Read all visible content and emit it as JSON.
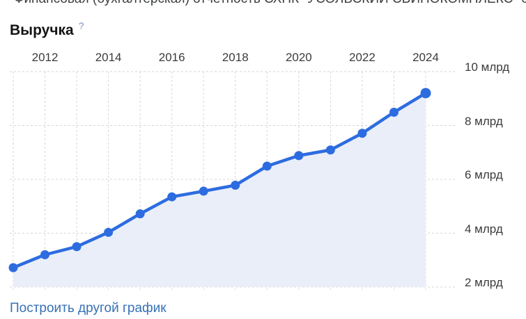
{
  "header": {
    "title": "Финансовая (бухгалтерская) отчетность СХПК \"УСОЛЬСКИЙ СВИНОКОМПЛЕКС\" со"
  },
  "section": {
    "title": "Выручка",
    "help": "?"
  },
  "chart_data": {
    "type": "area",
    "title": "Выручка",
    "unit": "млрд руб.",
    "x": [
      2011,
      2012,
      2013,
      2014,
      2015,
      2016,
      2017,
      2018,
      2019,
      2020,
      2021,
      2022,
      2023,
      2024
    ],
    "values": [
      2.72,
      3.2,
      3.5,
      4.03,
      4.72,
      5.35,
      5.56,
      5.78,
      6.49,
      6.88,
      7.09,
      7.71,
      8.49,
      9.2
    ],
    "x_ticks": [
      2012,
      2014,
      2016,
      2018,
      2020,
      2022,
      2024
    ],
    "y_ticks": [
      10,
      8,
      6,
      4,
      2
    ],
    "y_tick_labels": [
      "10 млрд",
      "8 млрд",
      "6 млрд",
      "4 млрд",
      "2 млрд"
    ],
    "xlim": [
      2011,
      2024
    ],
    "ylim": [
      2,
      10
    ],
    "grid": "dashed",
    "legend": "none",
    "line_color": "#2d6ce0",
    "fill_color": "#e9eef8"
  },
  "footer": {
    "link_label": "Построить другой график"
  }
}
